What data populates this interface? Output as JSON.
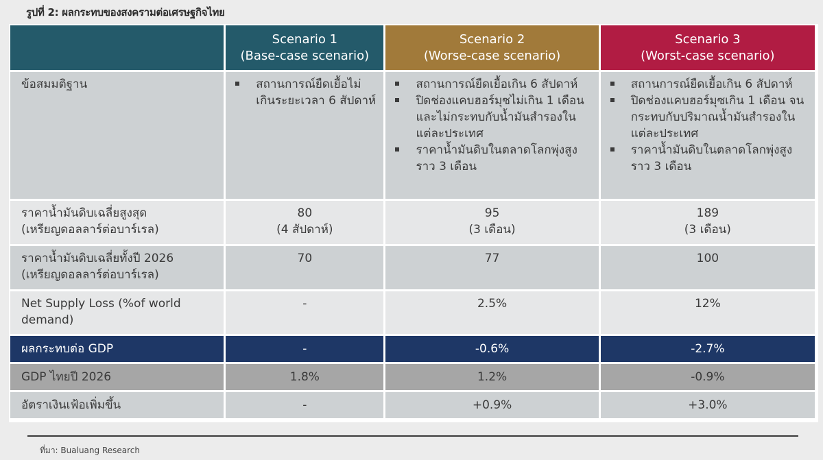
{
  "figure_title": "รูปที่ 2: ผลกระทบของสงครามต่อเศรษฐกิจไทย",
  "colors": {
    "scenario1_header": "#245a6a",
    "scenario2_header": "#a17a3a",
    "scenario3_header": "#b11c43",
    "gdp_impact_row": "#1e3766",
    "gdp_thai_row": "#a6a6a6"
  },
  "table": {
    "headers": [
      {
        "title": "Scenario 1",
        "subtitle": "(Base-case scenario)"
      },
      {
        "title": "Scenario 2",
        "subtitle": "(Worse-case scenario)"
      },
      {
        "title": "Scenario 3",
        "subtitle": "(Worst-case scenario)"
      }
    ],
    "assumptions": {
      "label": "ข้อสมมติฐาน",
      "s1": [
        "สถานการณ์ยืดเยื้อไม่เกินระยะเวลา 6 สัปดาห์"
      ],
      "s2": [
        "สถานการณ์ยืดเยื้อเกิน 6 สัปดาห์",
        "ปิดช่องแคบฮอร์มุซไม่เกิน 1 เดือน และไม่กระทบกับน้ำมันสำรองในแต่ละประเทศ",
        "ราคาน้ำมันดิบในตลาดโลกพุ่งสูงราว 3 เดือน"
      ],
      "s3": [
        "สถานการณ์ยืดเยื้อเกิน 6 สัปดาห์",
        "ปิดช่องแคบฮอร์มุซเกิน 1 เดือน จนกระทบกับปริมาณน้ำมันสำรองในแต่ละประเทศ",
        "ราคาน้ำมันดิบในตลาดโลกพุ่งสูงราว 3 เดือน"
      ]
    },
    "rows": [
      {
        "label_line1": "ราคาน้ำมันดิบเฉลี่ยสูงสุด",
        "label_line2": "(เหรียญดอลลาร์ต่อบาร์เรล)",
        "s1": "80",
        "s1_note": "(4  สัปดาห์)",
        "s2": "95",
        "s2_note": "(3 เดือน)",
        "s3": "189",
        "s3_note": "(3 เดือน)"
      },
      {
        "label_line1": "ราคาน้ำมันดิบเฉลี่ยทั้งปี 2026",
        "label_line2": "(เหรียญดอลลาร์ต่อบาร์เรล)",
        "s1": "70",
        "s2": "77",
        "s3": "100"
      },
      {
        "label_line1": "Net Supply Loss (%of world",
        "label_line2": "demand)",
        "s1": "-",
        "s2": "2.5%",
        "s3": "12%"
      },
      {
        "label_line1": "ผลกระทบต่อ GDP",
        "s1": "-",
        "s2": "-0.6%",
        "s3": "-2.7%"
      },
      {
        "label_line1": "GDP ไทยปี 2026",
        "s1": "1.8%",
        "s2": "1.2%",
        "s3": "-0.9%"
      },
      {
        "label_line1": "อัตราเงินเฟ้อเพิ่มขึ้น",
        "s1": "-",
        "s2": "+0.9%",
        "s3": "+3.0%"
      }
    ]
  },
  "source": "ที่มา: Bualuang Research"
}
